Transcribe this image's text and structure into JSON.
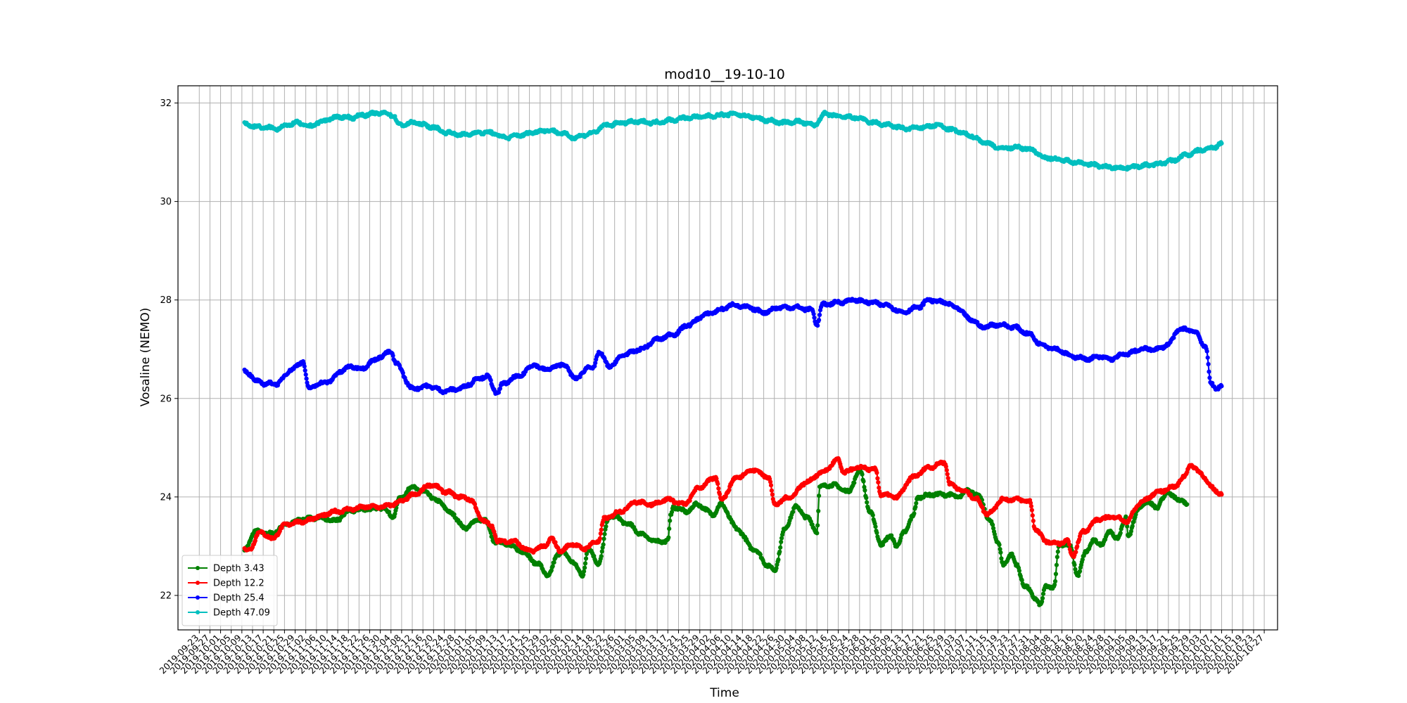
{
  "chart_data": {
    "type": "line",
    "title": "mod10__19-10-10",
    "xlabel": "Time",
    "ylabel": "Vosaline (NEMO)",
    "xlim": [
      "2019-09-15",
      "2020-11-01"
    ],
    "ylim": [
      21.3,
      32.35
    ],
    "yticks": [
      22,
      24,
      26,
      28,
      30,
      32
    ],
    "xtick_labels": [
      "2019-09-23",
      "2019-09-27",
      "2019-10-01",
      "2019-10-05",
      "2019-10-09",
      "2019-10-13",
      "2019-10-17",
      "2019-10-21",
      "2019-10-25",
      "2019-10-29",
      "2019-11-02",
      "2019-11-06",
      "2019-11-10",
      "2019-11-14",
      "2019-11-18",
      "2019-11-22",
      "2019-11-26",
      "2019-11-30",
      "2019-12-04",
      "2019-12-08",
      "2019-12-12",
      "2019-12-16",
      "2019-12-20",
      "2019-12-24",
      "2019-12-28",
      "2020-01-01",
      "2020-01-05",
      "2020-01-09",
      "2020-01-13",
      "2020-01-17",
      "2020-01-21",
      "2020-01-25",
      "2020-01-29",
      "2020-02-02",
      "2020-02-06",
      "2020-02-10",
      "2020-02-14",
      "2020-02-18",
      "2020-02-22",
      "2020-02-26",
      "2020-03-01",
      "2020-03-05",
      "2020-03-09",
      "2020-03-13",
      "2020-03-17",
      "2020-03-21",
      "2020-03-25",
      "2020-03-29",
      "2020-04-02",
      "2020-04-06",
      "2020-04-10",
      "2020-04-14",
      "2020-04-18",
      "2020-04-22",
      "2020-04-26",
      "2020-04-30",
      "2020-05-04",
      "2020-05-08",
      "2020-05-12",
      "2020-05-16",
      "2020-05-20",
      "2020-05-24",
      "2020-05-28",
      "2020-06-01",
      "2020-06-05",
      "2020-06-09",
      "2020-06-13",
      "2020-06-17",
      "2020-06-21",
      "2020-06-25",
      "2020-06-29",
      "2020-07-03",
      "2020-07-07",
      "2020-07-11",
      "2020-07-15",
      "2020-07-19",
      "2020-07-23",
      "2020-07-27",
      "2020-07-31",
      "2020-08-04",
      "2020-08-08",
      "2020-08-12",
      "2020-08-16",
      "2020-08-20",
      "2020-08-24",
      "2020-08-28",
      "2020-09-01",
      "2020-09-05",
      "2020-09-09",
      "2020-09-13",
      "2020-09-17",
      "2020-09-21",
      "2020-09-25",
      "2020-09-29",
      "2020-10-03",
      "2020-10-07",
      "2020-10-11",
      "2020-10-15",
      "2020-10-19",
      "2020-10-23",
      "2020-10-27"
    ],
    "grid": true,
    "legend_position": "lower-left",
    "series": [
      {
        "name": "Depth 3.43",
        "color": "#008000",
        "x": [
          "2019-10-10",
          "2019-10-14",
          "2019-10-20",
          "2019-10-26",
          "2019-11-01",
          "2019-11-07",
          "2019-11-13",
          "2019-11-19",
          "2019-11-25",
          "2019-12-01",
          "2019-12-05",
          "2019-12-07",
          "2019-12-12",
          "2019-12-17",
          "2019-12-22",
          "2019-12-27",
          "2020-01-01",
          "2020-01-04",
          "2020-01-08",
          "2020-01-12",
          "2020-01-16",
          "2020-01-22",
          "2020-01-28",
          "2020-02-01",
          "2020-02-05",
          "2020-02-06",
          "2020-02-10",
          "2020-02-14",
          "2020-02-16",
          "2020-02-20",
          "2020-02-24",
          "2020-02-26",
          "2020-03-02",
          "2020-03-07",
          "2020-03-12",
          "2020-03-17",
          "2020-03-18",
          "2020-03-19",
          "2020-03-24",
          "2020-03-28",
          "2020-04-03",
          "2020-04-06",
          "2020-04-12",
          "2020-04-18",
          "2020-04-24",
          "2020-04-26",
          "2020-04-30",
          "2020-05-04",
          "2020-05-08",
          "2020-05-12",
          "2020-05-13",
          "2020-05-18",
          "2020-05-22",
          "2020-05-24",
          "2020-05-28",
          "2020-06-01",
          "2020-06-05",
          "2020-06-09",
          "2020-06-11",
          "2020-06-14",
          "2020-06-17",
          "2020-06-19",
          "2020-06-25",
          "2020-06-30",
          "2020-07-04",
          "2020-07-08",
          "2020-07-12",
          "2020-07-16",
          "2020-07-19",
          "2020-07-21",
          "2020-07-24",
          "2020-07-26",
          "2020-07-29",
          "2020-08-02",
          "2020-08-04",
          "2020-08-06",
          "2020-08-09",
          "2020-08-11",
          "2020-08-15",
          "2020-08-18",
          "2020-08-21",
          "2020-08-24",
          "2020-08-27",
          "2020-08-30",
          "2020-09-02",
          "2020-09-05",
          "2020-09-06",
          "2020-09-10",
          "2020-09-14",
          "2020-09-17",
          "2020-09-19",
          "2020-09-20",
          "2020-09-23",
          "2020-09-25",
          "2020-09-28"
        ],
        "y": [
          22.92,
          23.3,
          23.25,
          23.45,
          23.55,
          23.58,
          23.52,
          23.72,
          23.75,
          23.78,
          23.6,
          23.95,
          24.2,
          24.08,
          23.9,
          23.65,
          23.35,
          23.5,
          23.55,
          23.1,
          23.05,
          22.9,
          22.65,
          22.4,
          22.85,
          22.9,
          22.7,
          22.4,
          22.95,
          22.65,
          23.6,
          23.6,
          23.45,
          23.25,
          23.1,
          23.1,
          23.6,
          23.8,
          23.7,
          23.85,
          23.65,
          23.85,
          23.35,
          22.95,
          22.6,
          22.5,
          23.35,
          23.8,
          23.6,
          23.3,
          24.2,
          24.25,
          24.15,
          24.1,
          24.55,
          23.7,
          23.05,
          23.2,
          23.0,
          23.3,
          23.6,
          24.0,
          24.05,
          24.05,
          24.0,
          24.15,
          24.0,
          23.5,
          23.1,
          22.6,
          22.85,
          22.6,
          22.2,
          21.95,
          21.8,
          22.2,
          22.15,
          23.05,
          23.0,
          22.4,
          22.9,
          23.1,
          23.05,
          23.3,
          23.15,
          23.6,
          23.2,
          23.8,
          23.9,
          23.75,
          24.0,
          24.1,
          24.0,
          23.95,
          23.85
        ]
      },
      {
        "name": "Depth 12.2",
        "color": "#ff0000",
        "x": [
          "2019-10-10",
          "2019-10-12",
          "2019-10-16",
          "2019-10-20",
          "2019-10-26",
          "2019-11-01",
          "2019-11-07",
          "2019-11-13",
          "2019-11-19",
          "2019-11-25",
          "2019-12-01",
          "2019-12-05",
          "2019-12-07",
          "2019-12-13",
          "2019-12-19",
          "2019-12-25",
          "2019-12-30",
          "2020-01-03",
          "2020-01-07",
          "2020-01-11",
          "2020-01-13",
          "2020-01-19",
          "2020-01-25",
          "2020-01-31",
          "2020-02-02",
          "2020-02-06",
          "2020-02-10",
          "2020-02-14",
          "2020-02-20",
          "2020-02-22",
          "2020-02-28",
          "2020-03-05",
          "2020-03-11",
          "2020-03-17",
          "2020-03-23",
          "2020-03-29",
          "2020-04-04",
          "2020-04-06",
          "2020-04-12",
          "2020-04-18",
          "2020-04-24",
          "2020-04-26",
          "2020-05-02",
          "2020-05-08",
          "2020-05-14",
          "2020-05-20",
          "2020-05-22",
          "2020-05-28",
          "2020-06-03",
          "2020-06-05",
          "2020-06-11",
          "2020-06-17",
          "2020-06-23",
          "2020-06-29",
          "2020-07-01",
          "2020-07-07",
          "2020-07-11",
          "2020-07-15",
          "2020-07-21",
          "2020-07-27",
          "2020-07-31",
          "2020-08-02",
          "2020-08-06",
          "2020-08-10",
          "2020-08-14",
          "2020-08-16",
          "2020-08-20",
          "2020-08-26",
          "2020-09-01",
          "2020-09-05",
          "2020-09-11",
          "2020-09-17",
          "2020-09-23",
          "2020-09-27",
          "2020-09-29",
          "2020-10-03",
          "2020-10-07",
          "2020-10-11"
        ],
        "y": [
          22.92,
          22.95,
          23.3,
          23.15,
          23.45,
          23.5,
          23.6,
          23.7,
          23.75,
          23.8,
          23.8,
          23.85,
          23.9,
          24.05,
          24.25,
          24.1,
          24.0,
          23.95,
          23.55,
          23.4,
          23.1,
          23.1,
          22.9,
          23.0,
          23.15,
          22.9,
          23.05,
          22.95,
          23.1,
          23.55,
          23.7,
          23.9,
          23.85,
          23.95,
          23.85,
          24.2,
          24.4,
          23.95,
          24.4,
          24.55,
          24.4,
          23.85,
          24.0,
          24.3,
          24.5,
          24.75,
          24.5,
          24.6,
          24.55,
          24.05,
          24.0,
          24.4,
          24.6,
          24.7,
          24.25,
          24.1,
          23.95,
          23.65,
          23.95,
          23.95,
          23.9,
          23.35,
          23.1,
          23.05,
          23.1,
          22.8,
          23.3,
          23.55,
          23.6,
          23.5,
          23.9,
          24.1,
          24.2,
          24.4,
          24.65,
          24.5,
          24.2,
          24.05
        ]
      },
      {
        "name": "Depth 25.4",
        "color": "#0000ff",
        "x": [
          "2019-10-10",
          "2019-10-12",
          "2019-10-14",
          "2019-10-18",
          "2019-10-22",
          "2019-10-28",
          "2019-11-01",
          "2019-11-03",
          "2019-11-07",
          "2019-11-11",
          "2019-11-15",
          "2019-11-19",
          "2019-11-23",
          "2019-11-27",
          "2019-11-30",
          "2019-12-04",
          "2019-12-06",
          "2019-12-12",
          "2019-12-18",
          "2019-12-24",
          "2019-12-30",
          "2020-01-03",
          "2020-01-05",
          "2020-01-09",
          "2020-01-13",
          "2020-01-15",
          "2020-01-21",
          "2020-01-27",
          "2020-01-29",
          "2020-02-02",
          "2020-02-06",
          "2020-02-12",
          "2020-02-16",
          "2020-02-18",
          "2020-02-20",
          "2020-02-24",
          "2020-03-01",
          "2020-03-07",
          "2020-03-13",
          "2020-03-19",
          "2020-03-25",
          "2020-03-31",
          "2020-04-06",
          "2020-04-10",
          "2020-04-16",
          "2020-04-22",
          "2020-04-28",
          "2020-05-04",
          "2020-05-10",
          "2020-05-12",
          "2020-05-14",
          "2020-05-20",
          "2020-05-26",
          "2020-06-01",
          "2020-06-07",
          "2020-06-13",
          "2020-06-19",
          "2020-06-23",
          "2020-06-29",
          "2020-07-03",
          "2020-07-09",
          "2020-07-13",
          "2020-07-19",
          "2020-07-25",
          "2020-07-31",
          "2020-08-04",
          "2020-08-10",
          "2020-08-16",
          "2020-08-22",
          "2020-08-26",
          "2020-08-30",
          "2020-09-05",
          "2020-09-11",
          "2020-09-17",
          "2020-09-21",
          "2020-09-25",
          "2020-09-29",
          "2020-10-01",
          "2020-10-05",
          "2020-10-07",
          "2020-10-09",
          "2020-10-11"
        ],
        "y": [
          26.55,
          26.5,
          26.35,
          26.3,
          26.3,
          26.6,
          26.75,
          26.2,
          26.3,
          26.35,
          26.55,
          26.65,
          26.6,
          26.75,
          26.85,
          26.95,
          26.7,
          26.2,
          26.25,
          26.15,
          26.2,
          26.3,
          26.4,
          26.45,
          26.1,
          26.3,
          26.45,
          26.7,
          26.6,
          26.6,
          26.7,
          26.4,
          26.65,
          26.6,
          26.95,
          26.65,
          26.9,
          27.0,
          27.2,
          27.3,
          27.5,
          27.7,
          27.8,
          27.9,
          27.85,
          27.75,
          27.85,
          27.85,
          27.8,
          27.5,
          27.9,
          27.95,
          28.0,
          27.95,
          27.9,
          27.75,
          27.85,
          28.0,
          27.95,
          27.85,
          27.6,
          27.45,
          27.5,
          27.45,
          27.3,
          27.1,
          27.0,
          26.85,
          26.8,
          26.85,
          26.8,
          26.9,
          27.0,
          27.0,
          27.1,
          27.4,
          27.4,
          27.35,
          27.05,
          26.3,
          26.2,
          26.25
        ]
      },
      {
        "name": "Depth 47.09",
        "color": "#00bfbf",
        "x": [
          "2019-10-10",
          "2019-10-14",
          "2019-10-18",
          "2019-10-22",
          "2019-10-26",
          "2019-10-30",
          "2019-11-03",
          "2019-11-07",
          "2019-11-11",
          "2019-11-15",
          "2019-11-19",
          "2019-11-23",
          "2019-11-27",
          "2019-12-01",
          "2019-12-05",
          "2019-12-07",
          "2019-12-13",
          "2019-12-19",
          "2019-12-25",
          "2019-12-31",
          "2020-01-06",
          "2020-01-10",
          "2020-01-16",
          "2020-01-22",
          "2020-01-28",
          "2020-02-01",
          "2020-02-05",
          "2020-02-11",
          "2020-02-17",
          "2020-02-23",
          "2020-02-29",
          "2020-03-06",
          "2020-03-12",
          "2020-03-18",
          "2020-03-24",
          "2020-03-30",
          "2020-04-05",
          "2020-04-11",
          "2020-04-17",
          "2020-04-23",
          "2020-04-29",
          "2020-05-05",
          "2020-05-11",
          "2020-05-15",
          "2020-05-21",
          "2020-05-27",
          "2020-06-02",
          "2020-06-08",
          "2020-06-14",
          "2020-06-20",
          "2020-06-26",
          "2020-07-02",
          "2020-07-08",
          "2020-07-14",
          "2020-07-20",
          "2020-07-26",
          "2020-08-01",
          "2020-08-05",
          "2020-08-11",
          "2020-08-17",
          "2020-08-23",
          "2020-08-29",
          "2020-09-04",
          "2020-09-10",
          "2020-09-16",
          "2020-09-22",
          "2020-09-28",
          "2020-10-04",
          "2020-10-08",
          "2020-10-11"
        ],
        "y": [
          31.58,
          31.52,
          31.5,
          31.48,
          31.55,
          31.6,
          31.52,
          31.6,
          31.68,
          31.72,
          31.7,
          31.75,
          31.78,
          31.8,
          31.75,
          31.55,
          31.6,
          31.52,
          31.4,
          31.35,
          31.4,
          31.4,
          31.3,
          31.35,
          31.42,
          31.45,
          31.4,
          31.3,
          31.38,
          31.55,
          31.6,
          31.62,
          31.6,
          31.65,
          31.7,
          31.72,
          31.75,
          31.78,
          31.72,
          31.65,
          31.6,
          31.62,
          31.55,
          31.78,
          31.72,
          31.7,
          31.6,
          31.55,
          31.48,
          31.5,
          31.55,
          31.45,
          31.35,
          31.2,
          31.08,
          31.1,
          31.05,
          30.9,
          30.85,
          30.8,
          30.75,
          30.7,
          30.68,
          30.72,
          30.75,
          30.82,
          30.95,
          31.05,
          31.1,
          31.18
        ]
      }
    ]
  }
}
